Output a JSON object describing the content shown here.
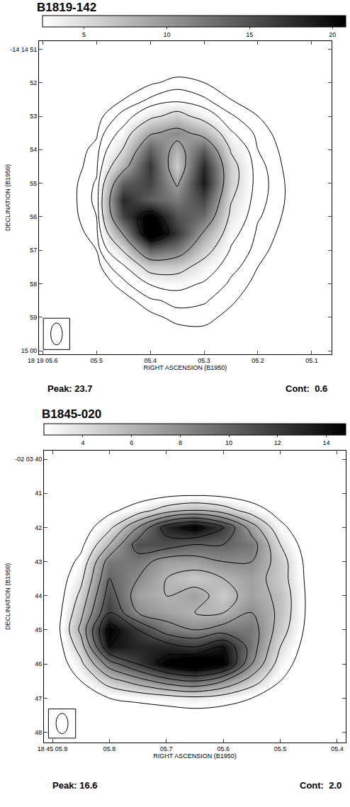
{
  "chart_data": [
    {
      "type": "heatmap",
      "title": "B1819-142",
      "x_label": "RIGHT ASCENSION (B1950)",
      "y_label": "DECLINATION (B1950)",
      "peak_label": "Peak: 23.7",
      "contour_label": "Cont:  0.6",
      "x": [
        5.6,
        5.55,
        5.5,
        5.45,
        5.4,
        5.35,
        5.3,
        5.25,
        5.2,
        5.15,
        5.1,
        5.05
      ],
      "y": [
        51.0,
        51.5,
        52.0,
        52.5,
        53.0,
        53.5,
        54.0,
        54.5,
        55.0,
        55.5,
        56.0,
        56.5,
        57.0,
        57.5,
        58.0,
        58.5,
        59.0,
        59.5,
        60.0
      ],
      "z": [
        [
          0,
          0,
          0,
          0,
          0,
          0,
          0,
          0,
          0,
          0,
          0,
          0
        ],
        [
          0,
          0,
          0,
          0,
          0.1,
          0.2,
          0.1,
          0,
          0,
          0,
          0,
          0
        ],
        [
          0,
          0,
          0,
          0.2,
          0.5,
          0.8,
          0.6,
          0.2,
          0,
          0,
          0,
          0
        ],
        [
          0,
          0,
          0.1,
          0.6,
          1.3,
          1.8,
          1.3,
          0.6,
          0.2,
          0,
          0,
          0
        ],
        [
          0,
          0,
          0.3,
          1.5,
          4,
          6,
          3.5,
          1.3,
          0.6,
          0.2,
          0,
          0
        ],
        [
          0,
          0.1,
          0.5,
          3,
          9,
          11,
          8,
          2.6,
          0.9,
          0.3,
          0,
          0
        ],
        [
          0,
          0.2,
          0.8,
          5,
          14,
          8,
          14,
          4.5,
          1.2,
          0.4,
          0.1,
          0
        ],
        [
          0,
          0.2,
          1,
          8,
          17,
          6,
          18,
          6,
          1.5,
          0.5,
          0.1,
          0
        ],
        [
          0,
          0.3,
          1.3,
          14,
          16,
          9,
          19,
          6,
          1.6,
          0.6,
          0.2,
          0
        ],
        [
          0,
          0.3,
          1.4,
          18,
          14,
          12,
          16,
          5,
          1.5,
          0.6,
          0.2,
          0
        ],
        [
          0,
          0.3,
          1.2,
          16,
          22,
          15,
          13,
          4,
          1.3,
          0.5,
          0.1,
          0
        ],
        [
          0,
          0.2,
          0.9,
          10,
          23.7,
          17,
          9,
          3,
          1,
          0.4,
          0.1,
          0
        ],
        [
          0,
          0.1,
          0.6,
          5,
          14,
          12,
          6,
          2.2,
          0.8,
          0.3,
          0,
          0
        ],
        [
          0,
          0,
          0.3,
          2,
          6,
          6,
          3.5,
          1.5,
          0.6,
          0.2,
          0,
          0
        ],
        [
          0,
          0,
          0.1,
          0.9,
          2.5,
          3,
          2.2,
          1,
          0.4,
          0.1,
          0,
          0
        ],
        [
          0,
          0,
          0,
          0.3,
          1,
          1.5,
          1.3,
          0.7,
          0.2,
          0,
          0,
          0
        ],
        [
          0,
          0,
          0,
          0.1,
          0.4,
          0.8,
          0.8,
          0.4,
          0.1,
          0,
          0,
          0
        ],
        [
          0,
          0,
          0,
          0,
          0.1,
          0.3,
          0.4,
          0.2,
          0,
          0,
          0,
          0
        ],
        [
          0,
          0,
          0,
          0,
          0,
          0.1,
          0.1,
          0,
          0,
          0,
          0,
          0
        ]
      ],
      "zlim": [
        2.5,
        20.8
      ],
      "zticks": [
        5,
        10,
        15,
        20
      ],
      "contour_levels": [
        0.6,
        1.2,
        2.4,
        4.8,
        9.6,
        19.2
      ],
      "xlim": [
        5.607,
        5.063
      ],
      "xticks": [
        {
          "value": 5.6,
          "label": "18 19 05.6"
        },
        {
          "value": 5.5,
          "label": "05.5"
        },
        {
          "value": 5.4,
          "label": "05.4"
        },
        {
          "value": 5.3,
          "label": "05.3"
        },
        {
          "value": 5.2,
          "label": "05.2"
        },
        {
          "value": 5.1,
          "label": "05.1"
        }
      ],
      "ylim": [
        60.1,
        50.76
      ],
      "yticks": [
        {
          "value": 51,
          "label": "-14 14 51"
        },
        52,
        53,
        54,
        55,
        56,
        57,
        58,
        59,
        {
          "value": 60,
          "label": "15 00"
        }
      ]
    },
    {
      "type": "heatmap",
      "title": "B1845-020",
      "x_label": "RIGHT ASCENSION (B1950)",
      "y_label": "DECLINATION (B1950)",
      "peak_label": "Peak: 16.6",
      "contour_label": "Cont:  2.0",
      "x": [
        5.9,
        5.85,
        5.8,
        5.75,
        5.7,
        5.65,
        5.6,
        5.55,
        5.5,
        5.45,
        5.4
      ],
      "y": [
        40.0,
        40.5,
        41.0,
        41.5,
        42.0,
        42.5,
        43.0,
        43.5,
        44.0,
        44.5,
        45.0,
        45.5,
        46.0,
        46.5,
        47.0,
        47.5,
        48.0
      ],
      "z": [
        [
          0,
          0,
          0,
          0,
          0,
          0,
          0,
          0,
          0,
          0,
          0
        ],
        [
          0,
          0,
          0,
          0,
          0.2,
          0.3,
          0.2,
          0,
          0,
          0,
          0
        ],
        [
          0,
          0,
          0.3,
          0.8,
          1.2,
          1.4,
          1.2,
          0.8,
          0.3,
          0,
          0
        ],
        [
          0,
          0.3,
          1.5,
          3,
          5,
          6,
          5,
          3,
          1.2,
          0.2,
          0
        ],
        [
          0,
          0.8,
          3.5,
          8,
          13,
          15,
          12,
          7,
          2.5,
          0.5,
          0
        ],
        [
          0,
          1.5,
          6,
          11,
          11,
          10,
          10,
          9,
          4,
          0.8,
          0
        ],
        [
          0.2,
          2.5,
          9,
          9,
          7,
          7,
          8,
          8,
          5,
          1.2,
          0
        ],
        [
          0.3,
          3.5,
          10,
          8,
          6,
          5,
          6,
          7,
          5,
          1.4,
          0
        ],
        [
          0.3,
          4.5,
          11,
          7,
          6,
          7,
          5,
          7,
          5.5,
          1.5,
          0
        ],
        [
          0.4,
          5.5,
          12,
          8,
          7,
          6,
          6,
          8,
          5.5,
          1.5,
          0
        ],
        [
          0.4,
          6.5,
          15,
          12,
          9,
          8,
          9,
          9,
          5,
          1.3,
          0
        ],
        [
          0.3,
          5,
          14,
          13,
          13,
          12,
          14,
          9,
          4,
          1,
          0
        ],
        [
          0.2,
          3.5,
          9,
          12,
          15,
          16.6,
          15,
          8,
          3,
          0.7,
          0
        ],
        [
          0.1,
          2,
          5,
          7,
          9,
          10,
          8,
          5,
          2,
          0.4,
          0
        ],
        [
          0,
          0.8,
          2,
          2.5,
          3,
          3.5,
          3,
          2,
          0.8,
          0.1,
          0
        ],
        [
          0,
          0.2,
          0.5,
          0.6,
          0.8,
          1,
          0.8,
          0.5,
          0.2,
          0,
          0
        ],
        [
          0,
          0,
          0,
          0,
          0,
          0,
          0,
          0,
          0,
          0,
          0
        ]
      ],
      "zlim": [
        2.4,
        14.8
      ],
      "zticks": [
        4,
        6,
        8,
        10,
        12,
        14
      ],
      "contour_levels": [
        2,
        4,
        6,
        8,
        10,
        12,
        14
      ],
      "xlim": [
        5.915,
        5.385
      ],
      "xticks": [
        {
          "value": 5.9,
          "label": "18 45 05.9"
        },
        {
          "value": 5.8,
          "label": "05.8"
        },
        {
          "value": 5.7,
          "label": "05.7"
        },
        {
          "value": 5.6,
          "label": "05.6"
        },
        {
          "value": 5.5,
          "label": "05.5"
        },
        {
          "value": 5.4,
          "label": "05.4"
        }
      ],
      "ylim": [
        48.3,
        39.75
      ],
      "yticks": [
        {
          "value": 40,
          "label": "-02 03 40"
        },
        41,
        42,
        43,
        44,
        45,
        46,
        47,
        48
      ]
    }
  ]
}
